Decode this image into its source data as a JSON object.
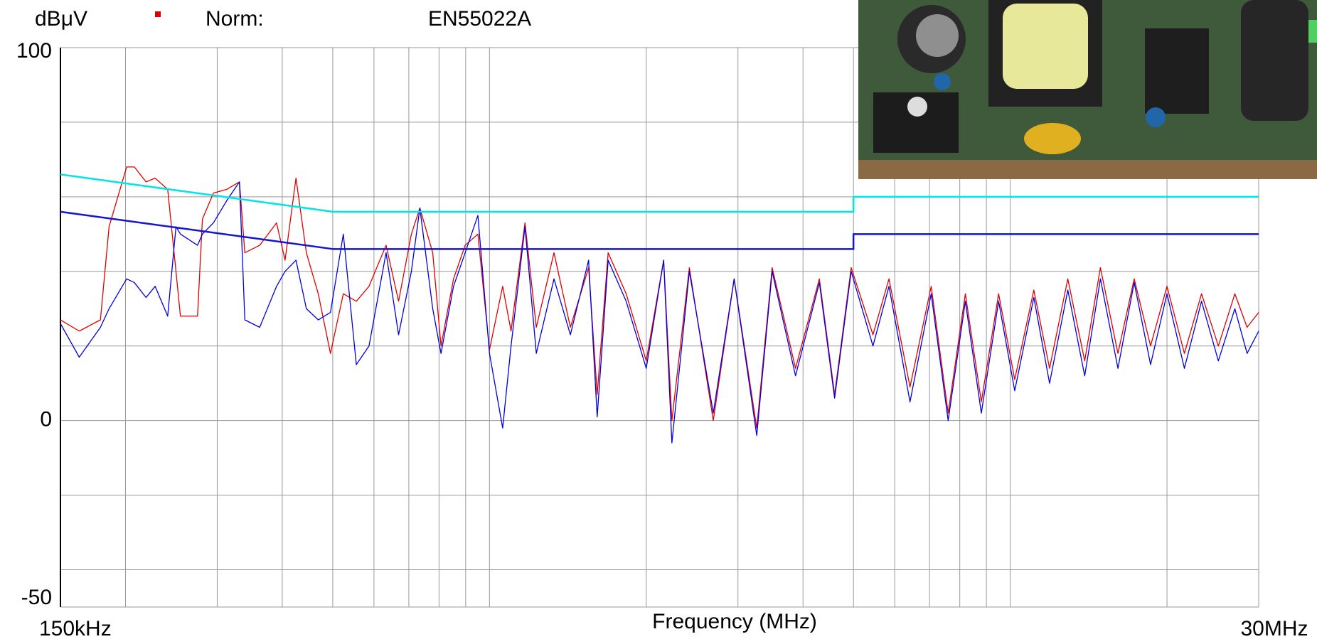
{
  "chart_data": {
    "type": "line",
    "y_unit": "dBμV",
    "norm_label": "Norm:",
    "norm": "EN55022A",
    "xlabel": "Frequency (MHz)",
    "log_x": true,
    "grid": true,
    "xlim": [
      0.15,
      30
    ],
    "xticks": [
      {
        "value": 0.15,
        "label": "150kHz"
      },
      {
        "value": 30,
        "label": "30MHz"
      }
    ],
    "xgrid": [
      0.2,
      0.3,
      0.4,
      0.5,
      0.6,
      0.7,
      0.8,
      0.9,
      1,
      2,
      3,
      4,
      5,
      6,
      7,
      8,
      9,
      10,
      20
    ],
    "ylim": [
      -50,
      100
    ],
    "yticks": [
      100,
      0,
      -50
    ],
    "ygrid": [
      80,
      60,
      40,
      20,
      -20,
      -40
    ],
    "x": [
      0.15,
      0.163,
      0.179,
      0.186,
      0.201,
      0.208,
      0.219,
      0.228,
      0.241,
      0.25,
      0.255,
      0.275,
      0.281,
      0.295,
      0.313,
      0.331,
      0.339,
      0.362,
      0.39,
      0.405,
      0.425,
      0.445,
      0.469,
      0.495,
      0.524,
      0.555,
      0.587,
      0.633,
      0.669,
      0.708,
      0.735,
      0.778,
      0.807,
      0.853,
      0.898,
      0.95,
      1.0,
      1.06,
      1.1,
      1.17,
      1.23,
      1.33,
      1.43,
      1.55,
      1.61,
      1.69,
      1.83,
      2.0,
      2.16,
      2.24,
      2.42,
      2.69,
      2.95,
      3.26,
      3.49,
      3.87,
      4.3,
      4.6,
      4.95,
      5.45,
      5.85,
      6.42,
      7.05,
      7.6,
      8.2,
      8.8,
      9.5,
      10.2,
      11.1,
      11.9,
      12.9,
      13.9,
      14.9,
      16.1,
      17.3,
      18.6,
      20,
      21.6,
      23.3,
      25.1,
      27,
      28.5,
      30
    ],
    "series": [
      {
        "color": "#e00000",
        "values": [
          27,
          24,
          27,
          52,
          68,
          68,
          64,
          65,
          62,
          40,
          28,
          28,
          54,
          61,
          62,
          64,
          45,
          47,
          53,
          43,
          65,
          45,
          34,
          18,
          34,
          32,
          36,
          47,
          32,
          50,
          57,
          45,
          20,
          38,
          47,
          50,
          19,
          36,
          24,
          53,
          25,
          45,
          25,
          41,
          7,
          45,
          34,
          16,
          43,
          0,
          41,
          0,
          38,
          -2,
          41,
          14,
          38,
          7,
          41,
          23,
          38,
          9,
          36,
          2,
          34,
          5,
          34,
          11,
          35,
          14,
          38,
          16,
          41,
          18,
          38,
          20,
          36,
          18,
          34,
          20,
          34,
          25,
          29
        ]
      },
      {
        "color": "#0000e0",
        "values": [
          26,
          17,
          25,
          30,
          38,
          37,
          33,
          36,
          28,
          52,
          50,
          47,
          50,
          53,
          59,
          64,
          27,
          25,
          36,
          40,
          43,
          30,
          27,
          29,
          50,
          15,
          20,
          45,
          23,
          40,
          57,
          30,
          18,
          36,
          45,
          55,
          18,
          -2,
          20,
          52,
          18,
          38,
          23,
          43,
          1,
          43,
          32,
          14,
          43,
          -6,
          40,
          2,
          38,
          -4,
          40,
          12,
          37,
          6,
          40,
          20,
          36,
          5,
          34,
          0,
          32,
          2,
          32,
          8,
          33,
          10,
          35,
          12,
          38,
          14,
          37,
          15,
          34,
          14,
          32,
          16,
          30,
          18,
          24
        ]
      }
    ],
    "limits": [
      {
        "color": "#00e5e5",
        "x": [
          0.15,
          0.5,
          5,
          5,
          30
        ],
        "values": [
          66,
          56,
          56,
          60,
          60
        ]
      },
      {
        "color": "#1414d2",
        "x": [
          0.15,
          0.5,
          5,
          5,
          30
        ],
        "values": [
          56,
          46,
          46,
          50,
          50
        ]
      }
    ]
  }
}
